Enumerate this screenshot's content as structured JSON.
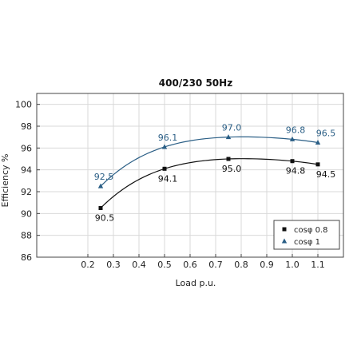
{
  "chart_data": {
    "type": "line",
    "title": "400/230 50Hz",
    "xlabel": "Load p.u.",
    "ylabel": "Efficiency %",
    "xlim": [
      0.0,
      1.2
    ],
    "ylim": [
      86,
      101
    ],
    "xticks": [
      0.2,
      0.3,
      0.4,
      0.5,
      0.6,
      0.7,
      0.8,
      0.9,
      1.0,
      1.1
    ],
    "yticks": [
      86,
      88,
      90,
      92,
      94,
      96,
      98,
      100
    ],
    "grid": true,
    "legend_position": "bottom-right",
    "series": [
      {
        "name": "cosφ 0.8",
        "marker": "square",
        "color": "#111111",
        "x": [
          0.25,
          0.5,
          0.75,
          1.0,
          1.1
        ],
        "y": [
          90.5,
          94.1,
          95.0,
          94.8,
          94.5
        ],
        "labels": [
          "90.5",
          "94.1",
          "95.0",
          "94.8",
          "94.5"
        ]
      },
      {
        "name": "cosφ 1",
        "marker": "triangle",
        "color": "#2b5f86",
        "x": [
          0.25,
          0.5,
          0.75,
          1.0,
          1.1
        ],
        "y": [
          92.5,
          96.1,
          97.0,
          96.8,
          96.5
        ],
        "labels": [
          "92.5",
          "96.1",
          "97.0",
          "96.8",
          "96.5"
        ]
      }
    ]
  }
}
